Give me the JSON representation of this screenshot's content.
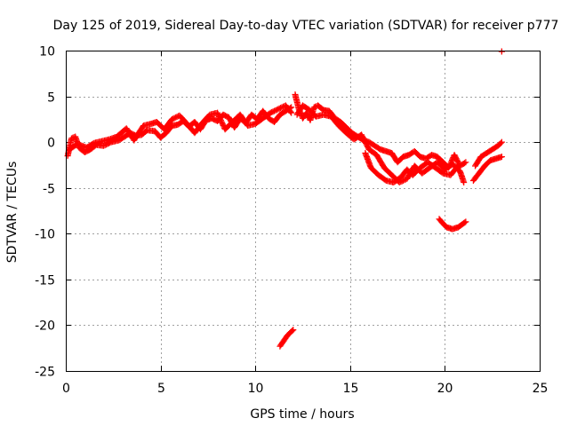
{
  "chart_data": {
    "type": "scatter",
    "title": "Day 125 of 2019, Sidereal Day-to-day VTEC variation (SDTVAR) for receiver p777",
    "xlabel": "GPS time / hours",
    "ylabel": "SDTVAR / TECUs",
    "xlim": [
      0,
      25
    ],
    "ylim": [
      -25,
      10
    ],
    "xticks": [
      "0",
      "5",
      "10",
      "15",
      "20",
      "25"
    ],
    "yticks": [
      "10",
      "5",
      "0",
      "-5",
      "-10",
      "-15",
      "-20",
      "-25"
    ],
    "grid": true,
    "marker": "+",
    "color": "#ff0000",
    "series": [
      {
        "name": "SDTVAR",
        "segments": [
          [
            [
              0.1,
              -1.5
            ],
            [
              0.3,
              0.4
            ],
            [
              0.5,
              0.6
            ],
            [
              0.7,
              -0.6
            ],
            [
              1.0,
              -1.1
            ],
            [
              1.3,
              -0.8
            ],
            [
              1.6,
              -0.3
            ],
            [
              2.0,
              -0.4
            ],
            [
              2.4,
              0.0
            ],
            [
              2.8,
              0.2
            ],
            [
              3.1,
              0.6
            ],
            [
              3.4,
              1.0
            ],
            [
              3.7,
              0.7
            ],
            [
              4.0,
              0.8
            ],
            [
              4.3,
              1.3
            ],
            [
              4.7,
              1.2
            ],
            [
              5.0,
              0.5
            ],
            [
              5.3,
              1.0
            ],
            [
              5.6,
              1.8
            ],
            [
              5.9,
              1.9
            ],
            [
              6.2,
              2.3
            ],
            [
              6.5,
              1.7
            ],
            [
              6.8,
              2.2
            ],
            [
              7.1,
              1.4
            ],
            [
              7.4,
              2.4
            ],
            [
              7.7,
              2.6
            ],
            [
              8.0,
              2.3
            ],
            [
              8.3,
              3.0
            ],
            [
              8.6,
              2.7
            ],
            [
              8.9,
              1.6
            ],
            [
              9.2,
              2.6
            ],
            [
              9.5,
              2.1
            ],
            [
              9.8,
              3.0
            ],
            [
              10.1,
              2.5
            ],
            [
              10.4,
              3.4
            ],
            [
              10.7,
              2.6
            ],
            [
              11.0,
              2.2
            ],
            [
              11.3,
              3.0
            ],
            [
              11.6,
              3.4
            ],
            [
              11.9,
              3.8
            ]
          ],
          [
            [
              0.2,
              -0.8
            ],
            [
              0.6,
              -0.2
            ],
            [
              1.1,
              -0.6
            ],
            [
              1.5,
              -0.1
            ],
            [
              1.9,
              0.1
            ],
            [
              2.3,
              0.3
            ],
            [
              2.7,
              0.6
            ],
            [
              3.2,
              1.5
            ],
            [
              3.6,
              0.2
            ],
            [
              4.1,
              1.8
            ],
            [
              4.5,
              2.0
            ],
            [
              4.8,
              2.2
            ],
            [
              5.2,
              1.4
            ],
            [
              5.6,
              2.5
            ],
            [
              6.0,
              2.9
            ],
            [
              6.4,
              2.0
            ],
            [
              6.8,
              1.0
            ],
            [
              7.2,
              2.1
            ],
            [
              7.6,
              3.0
            ],
            [
              8.0,
              3.2
            ],
            [
              8.4,
              1.4
            ],
            [
              8.8,
              2.2
            ],
            [
              9.2,
              3.0
            ],
            [
              9.6,
              1.8
            ],
            [
              10.0,
              2.0
            ],
            [
              10.4,
              2.6
            ],
            [
              10.8,
              3.2
            ],
            [
              11.2,
              3.6
            ],
            [
              11.6,
              4.0
            ],
            [
              11.9,
              3.2
            ]
          ],
          [
            [
              12.1,
              5.2
            ],
            [
              12.3,
              3.6
            ],
            [
              12.5,
              2.6
            ],
            [
              12.7,
              3.2
            ],
            [
              12.9,
              2.4
            ],
            [
              13.1,
              3.8
            ],
            [
              13.3,
              4.0
            ],
            [
              13.6,
              3.5
            ],
            [
              13.9,
              3.4
            ],
            [
              14.2,
              2.6
            ],
            [
              14.5,
              2.2
            ],
            [
              14.8,
              1.6
            ],
            [
              15.1,
              1.0
            ],
            [
              15.4,
              0.6
            ],
            [
              15.7,
              0.2
            ],
            [
              16.0,
              0.0
            ],
            [
              16.3,
              -0.4
            ],
            [
              16.6,
              -0.8
            ],
            [
              16.9,
              -1.0
            ],
            [
              17.2,
              -1.2
            ],
            [
              17.5,
              -2.2
            ],
            [
              17.8,
              -1.6
            ],
            [
              18.1,
              -1.4
            ],
            [
              18.4,
              -1.0
            ],
            [
              18.7,
              -1.6
            ],
            [
              19.0,
              -1.8
            ],
            [
              19.3,
              -1.4
            ],
            [
              19.6,
              -1.6
            ],
            [
              19.9,
              -2.2
            ],
            [
              20.2,
              -2.8
            ],
            [
              20.5,
              -1.4
            ],
            [
              20.8,
              -2.6
            ],
            [
              21.1,
              -2.2
            ]
          ],
          [
            [
              12.2,
              3.0
            ],
            [
              12.5,
              4.0
            ],
            [
              12.8,
              3.6
            ],
            [
              13.2,
              2.8
            ],
            [
              13.6,
              3.0
            ],
            [
              14.0,
              2.8
            ],
            [
              14.4,
              1.8
            ],
            [
              14.8,
              1.0
            ],
            [
              15.2,
              0.3
            ],
            [
              15.6,
              0.8
            ],
            [
              16.0,
              -0.8
            ],
            [
              16.4,
              -1.4
            ],
            [
              16.8,
              -2.8
            ],
            [
              17.2,
              -3.6
            ],
            [
              17.6,
              -4.4
            ],
            [
              18.0,
              -4.0
            ],
            [
              18.4,
              -2.6
            ],
            [
              18.8,
              -3.4
            ],
            [
              19.2,
              -2.8
            ],
            [
              19.6,
              -2.2
            ],
            [
              20.0,
              -3.0
            ],
            [
              20.4,
              -2.4
            ],
            [
              20.8,
              -3.2
            ],
            [
              21.0,
              -4.4
            ]
          ],
          [
            [
              15.8,
              -1.2
            ],
            [
              16.1,
              -2.8
            ],
            [
              16.5,
              -3.6
            ],
            [
              16.9,
              -4.2
            ],
            [
              17.3,
              -4.4
            ],
            [
              17.7,
              -3.8
            ],
            [
              18.0,
              -3.0
            ],
            [
              18.3,
              -3.6
            ],
            [
              18.7,
              -2.8
            ],
            [
              19.1,
              -2.2
            ],
            [
              19.5,
              -2.8
            ],
            [
              19.9,
              -3.4
            ],
            [
              20.3,
              -3.6
            ],
            [
              20.7,
              -2.6
            ]
          ],
          [
            [
              21.5,
              -4.2
            ],
            [
              21.8,
              -3.4
            ],
            [
              22.1,
              -2.6
            ],
            [
              22.4,
              -2.0
            ],
            [
              22.7,
              -1.8
            ],
            [
              23.0,
              -1.6
            ]
          ],
          [
            [
              21.6,
              -2.6
            ],
            [
              21.9,
              -1.6
            ],
            [
              22.2,
              -1.2
            ],
            [
              22.5,
              -0.8
            ],
            [
              22.8,
              -0.4
            ],
            [
              23.0,
              0.0
            ]
          ],
          [
            [
              19.7,
              -8.4
            ],
            [
              19.9,
              -8.9
            ],
            [
              20.1,
              -9.3
            ],
            [
              20.4,
              -9.5
            ],
            [
              20.7,
              -9.3
            ],
            [
              20.9,
              -9.0
            ],
            [
              21.1,
              -8.7
            ]
          ],
          [
            [
              11.3,
              -22.3
            ],
            [
              11.5,
              -21.7
            ],
            [
              11.7,
              -21.1
            ],
            [
              11.9,
              -20.7
            ],
            [
              12.0,
              -20.5
            ]
          ],
          [
            [
              23.0,
              9.9
            ],
            [
              23.0,
              9.9
            ]
          ]
        ]
      }
    ]
  }
}
